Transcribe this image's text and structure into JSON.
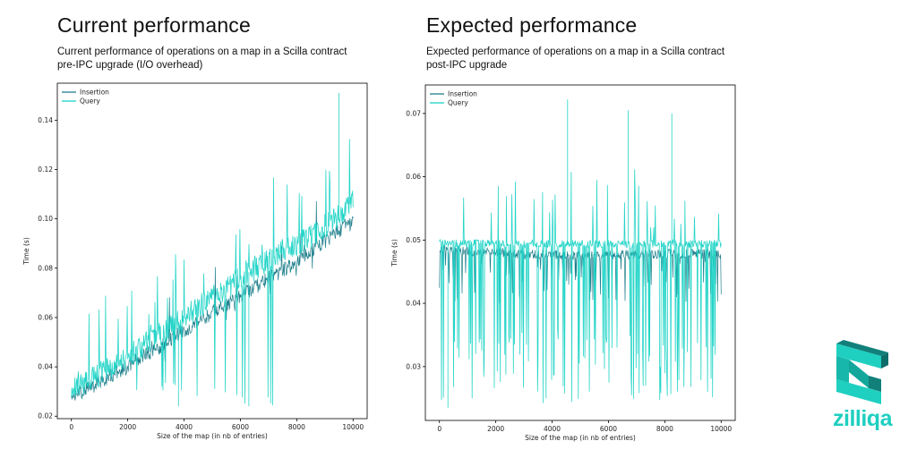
{
  "panels": [
    {
      "title": "Current performance",
      "subtitle_line1": "Current performance of operations on a map in a Scilla contract",
      "subtitle_line2": "pre-IPC upgrade (I/O overhead)"
    },
    {
      "title": "Expected performance",
      "subtitle_line1": "Expected performance of operations on a map in a Scilla contract",
      "subtitle_line2": "post-IPC upgrade"
    }
  ],
  "chart_data": [
    {
      "type": "line",
      "title": "",
      "xlabel": "Size of the map (in nb of entries)",
      "ylabel": "Time (s)",
      "xlim": [
        -500,
        10500
      ],
      "ylim": [
        0.019,
        0.155
      ],
      "xticks": [
        0,
        2000,
        4000,
        6000,
        8000,
        10000
      ],
      "yticks": [
        0.02,
        0.04,
        0.06,
        0.08,
        0.1,
        0.12,
        0.14
      ],
      "ytick_labels": [
        "0.02",
        "0.04",
        "0.06",
        "0.08",
        "0.10",
        "0.12",
        "0.14"
      ],
      "legend_position": "top-left",
      "series": [
        {
          "name": "Insertion",
          "color": "#1f7f8c",
          "x": [
            0,
            500,
            1000,
            1500,
            2000,
            2500,
            3000,
            3500,
            4000,
            4500,
            5000,
            5500,
            6000,
            6500,
            7000,
            7500,
            8000,
            8500,
            9000,
            9500,
            10000
          ],
          "values": [
            0.027,
            0.031,
            0.034,
            0.037,
            0.04,
            0.044,
            0.047,
            0.051,
            0.055,
            0.058,
            0.062,
            0.065,
            0.069,
            0.072,
            0.076,
            0.079,
            0.083,
            0.087,
            0.091,
            0.095,
            0.1
          ]
        },
        {
          "name": "Query",
          "color": "#19d3c5",
          "x": [
            0,
            500,
            1000,
            1500,
            2000,
            2500,
            3000,
            3500,
            4000,
            4500,
            5000,
            5500,
            6000,
            6500,
            7000,
            7500,
            8000,
            8500,
            9000,
            9500,
            10000
          ],
          "values": [
            0.03,
            0.034,
            0.037,
            0.04,
            0.044,
            0.048,
            0.052,
            0.056,
            0.06,
            0.064,
            0.068,
            0.072,
            0.076,
            0.08,
            0.083,
            0.087,
            0.09,
            0.093,
            0.097,
            0.101,
            0.108
          ]
        }
      ],
      "annotations": [
        {
          "name": "Query peak",
          "x": 9500,
          "y": 0.151
        },
        {
          "name": "Query dip",
          "x": 3800,
          "y": 0.024
        },
        {
          "name": "Query dip",
          "x": 6300,
          "y": 0.024
        }
      ]
    },
    {
      "type": "line",
      "title": "",
      "xlabel": "Size of the map (in nb of entries)",
      "ylabel": "Time (s)",
      "xlim": [
        -500,
        10500
      ],
      "ylim": [
        0.0215,
        0.0745
      ],
      "xticks": [
        0,
        2000,
        4000,
        6000,
        8000,
        10000
      ],
      "yticks": [
        0.03,
        0.04,
        0.05,
        0.06,
        0.07
      ],
      "ytick_labels": [
        "0.03",
        "0.04",
        "0.05",
        "0.06",
        "0.07"
      ],
      "legend_position": "top-left",
      "series": [
        {
          "name": "Insertion",
          "color": "#1f7f8c",
          "x": [
            0,
            1000,
            2000,
            3000,
            4000,
            5000,
            6000,
            7000,
            8000,
            9000,
            10000
          ],
          "values": [
            0.0485,
            0.0482,
            0.048,
            0.0478,
            0.0477,
            0.0476,
            0.0476,
            0.0477,
            0.0478,
            0.0478,
            0.0478
          ]
        },
        {
          "name": "Query",
          "color": "#19d3c5",
          "x": [
            0,
            1000,
            2000,
            3000,
            4000,
            5000,
            6000,
            7000,
            8000,
            9000,
            10000
          ],
          "values": [
            0.0495,
            0.0495,
            0.0494,
            0.0494,
            0.0494,
            0.0494,
            0.0494,
            0.0494,
            0.0494,
            0.0494,
            0.0494
          ]
        }
      ],
      "annotations": [
        {
          "name": "Query peak",
          "x": 4550,
          "y": 0.0722
        },
        {
          "name": "Query peak",
          "x": 6700,
          "y": 0.0705
        },
        {
          "name": "Query peak",
          "x": 8250,
          "y": 0.07
        },
        {
          "name": "Query dip",
          "x": 300,
          "y": 0.0235
        }
      ]
    }
  ],
  "brand": {
    "name": "zilliqa",
    "primary_color": "#1fcfc0",
    "dark_color": "#11807b"
  }
}
